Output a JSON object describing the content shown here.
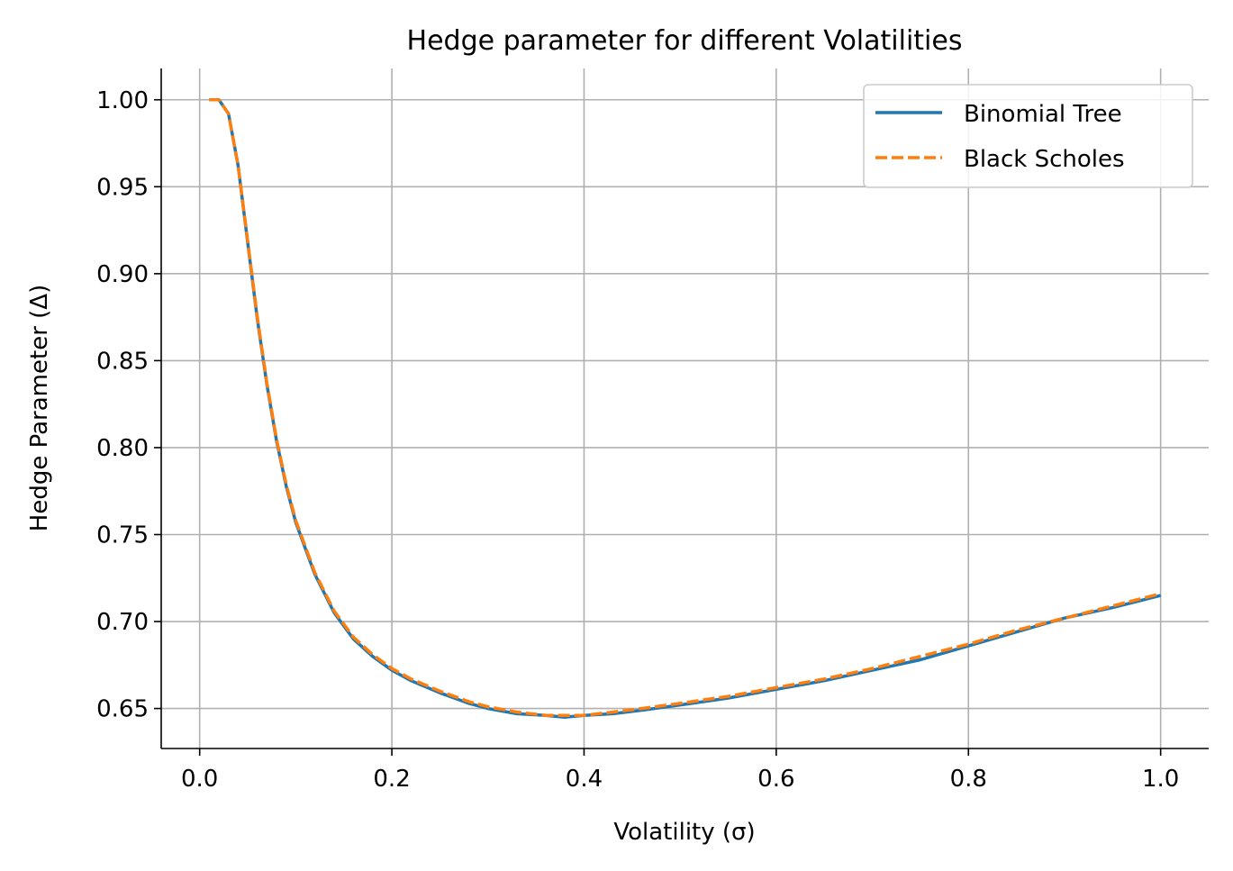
{
  "chart_data": {
    "type": "line",
    "title": "Hedge parameter for different Volatilities",
    "xlabel": "Volatility (σ)",
    "ylabel": "Hedge Parameter (Δ)",
    "xlim": [
      -0.04,
      1.05
    ],
    "ylim": [
      0.627,
      1.018
    ],
    "xticks": [
      0.0,
      0.2,
      0.4,
      0.6,
      0.8,
      1.0
    ],
    "xtick_labels": [
      "0.0",
      "0.2",
      "0.4",
      "0.6",
      "0.8",
      "1.0"
    ],
    "yticks": [
      0.65,
      0.7,
      0.75,
      0.8,
      0.85,
      0.9,
      0.95,
      1.0
    ],
    "ytick_labels": [
      "0.65",
      "0.70",
      "0.75",
      "0.80",
      "0.85",
      "0.90",
      "0.95",
      "1.00"
    ],
    "grid": true,
    "legend_position": "top-right",
    "x": [
      0.01,
      0.02,
      0.03,
      0.04,
      0.05,
      0.06,
      0.07,
      0.08,
      0.09,
      0.1,
      0.12,
      0.14,
      0.16,
      0.18,
      0.2,
      0.22,
      0.25,
      0.28,
      0.3,
      0.33,
      0.36,
      0.38,
      0.4,
      0.43,
      0.46,
      0.5,
      0.55,
      0.6,
      0.65,
      0.7,
      0.75,
      0.8,
      0.85,
      0.9,
      0.95,
      1.0
    ],
    "series": [
      {
        "name": "Binomial Tree",
        "color": "#1f77b4",
        "style": "solid",
        "values": [
          1.0,
          1.0,
          0.992,
          0.962,
          0.918,
          0.874,
          0.836,
          0.804,
          0.778,
          0.757,
          0.727,
          0.705,
          0.69,
          0.68,
          0.672,
          0.666,
          0.659,
          0.653,
          0.65,
          0.647,
          0.646,
          0.645,
          0.646,
          0.647,
          0.649,
          0.652,
          0.656,
          0.661,
          0.666,
          0.672,
          0.678,
          0.686,
          0.694,
          0.702,
          0.708,
          0.715
        ]
      },
      {
        "name": "Black Scholes",
        "color": "#ff7f0e",
        "style": "dashed",
        "values": [
          1.0,
          1.0,
          0.992,
          0.962,
          0.919,
          0.875,
          0.837,
          0.805,
          0.779,
          0.758,
          0.728,
          0.706,
          0.691,
          0.681,
          0.673,
          0.667,
          0.66,
          0.654,
          0.651,
          0.648,
          0.646,
          0.646,
          0.646,
          0.648,
          0.65,
          0.653,
          0.657,
          0.662,
          0.667,
          0.673,
          0.68,
          0.687,
          0.695,
          0.702,
          0.709,
          0.716
        ]
      }
    ]
  }
}
